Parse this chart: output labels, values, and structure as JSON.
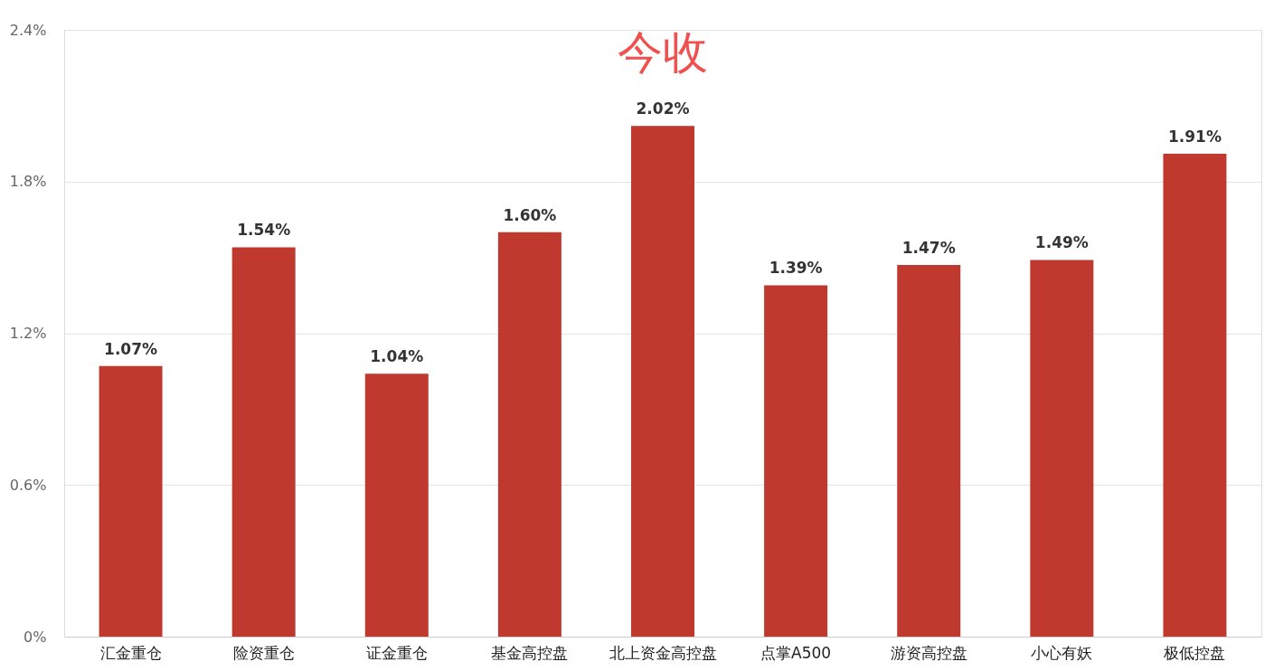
{
  "chart_data": {
    "type": "bar",
    "title": "今收",
    "categories": [
      "汇金重仓",
      "险资重仓",
      "证金重仓",
      "基金高控盘",
      "北上资金高控盘",
      "点掌A500",
      "游资高控盘",
      "小心有妖",
      "极低控盘"
    ],
    "values": [
      1.07,
      1.54,
      1.04,
      1.6,
      2.02,
      1.39,
      1.47,
      1.49,
      1.91
    ],
    "value_labels": [
      "1.07%",
      "1.54%",
      "1.04%",
      "1.60%",
      "2.02%",
      "1.39%",
      "1.47%",
      "1.49%",
      "1.91%"
    ],
    "color": "#c0392f",
    "ylim": [
      0,
      2.4
    ],
    "yticks": [
      {
        "value": 0,
        "label": "0%"
      },
      {
        "value": 0.6,
        "label": "0.6%"
      },
      {
        "value": 1.2,
        "label": "1.2%"
      },
      {
        "value": 1.8,
        "label": "1.8%"
      },
      {
        "value": 2.4,
        "label": "2.4%"
      }
    ],
    "grid": "y"
  }
}
